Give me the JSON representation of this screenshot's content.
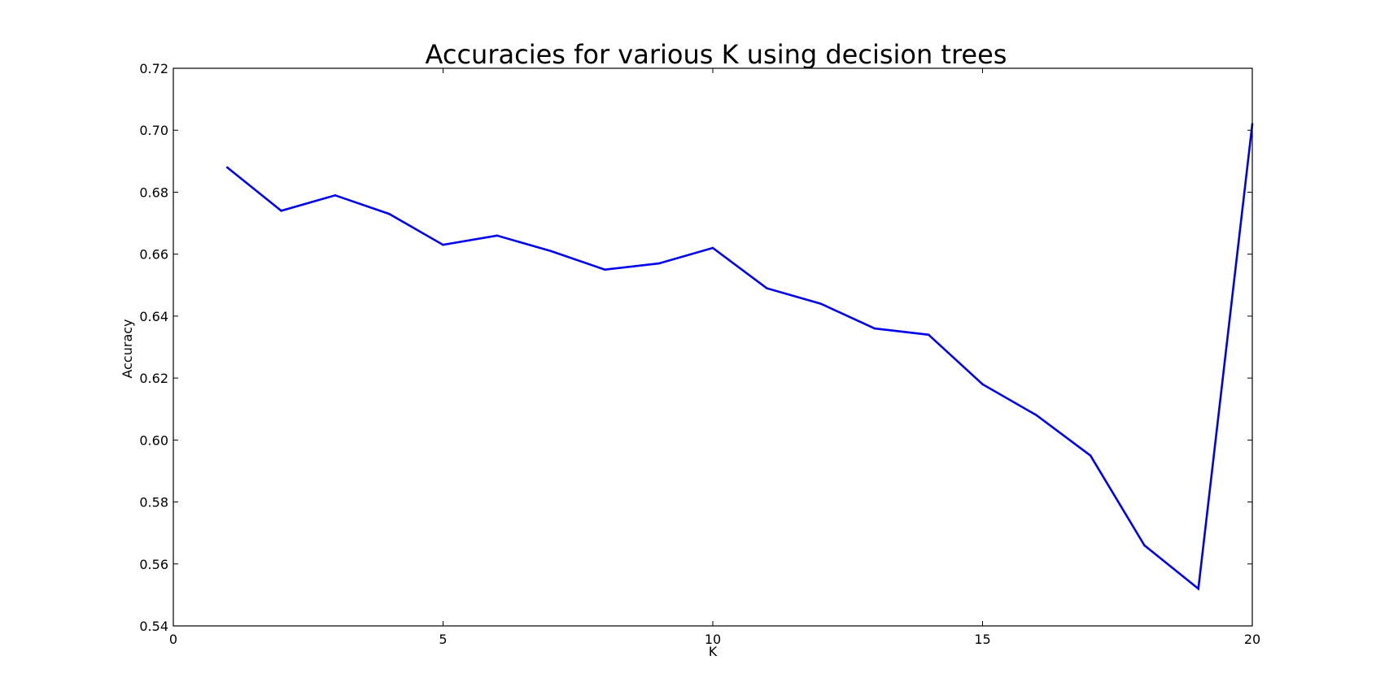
{
  "chart_data": {
    "type": "line",
    "title": "Accuracies for various K using decision trees",
    "xlabel": "K",
    "ylabel": "Accuracy",
    "xlim": [
      0,
      20
    ],
    "ylim": [
      0.54,
      0.72
    ],
    "xticks": [
      "0",
      "5",
      "10",
      "15",
      "20"
    ],
    "yticks": [
      "0.54",
      "0.56",
      "0.58",
      "0.60",
      "0.62",
      "0.64",
      "0.66",
      "0.68",
      "0.70",
      "0.72"
    ],
    "grid": false,
    "legend": "none",
    "line_color": "#0000ee",
    "series": [
      {
        "x": [
          1,
          2,
          3,
          4,
          5,
          6,
          7,
          8,
          9,
          10,
          11,
          12,
          13,
          14,
          15,
          16,
          17,
          18,
          19,
          20
        ],
        "values": [
          0.688,
          0.674,
          0.679,
          0.673,
          0.663,
          0.666,
          0.661,
          0.655,
          0.657,
          0.662,
          0.649,
          0.644,
          0.636,
          0.634,
          0.618,
          0.608,
          0.595,
          0.566,
          0.552,
          0.702
        ]
      }
    ]
  }
}
